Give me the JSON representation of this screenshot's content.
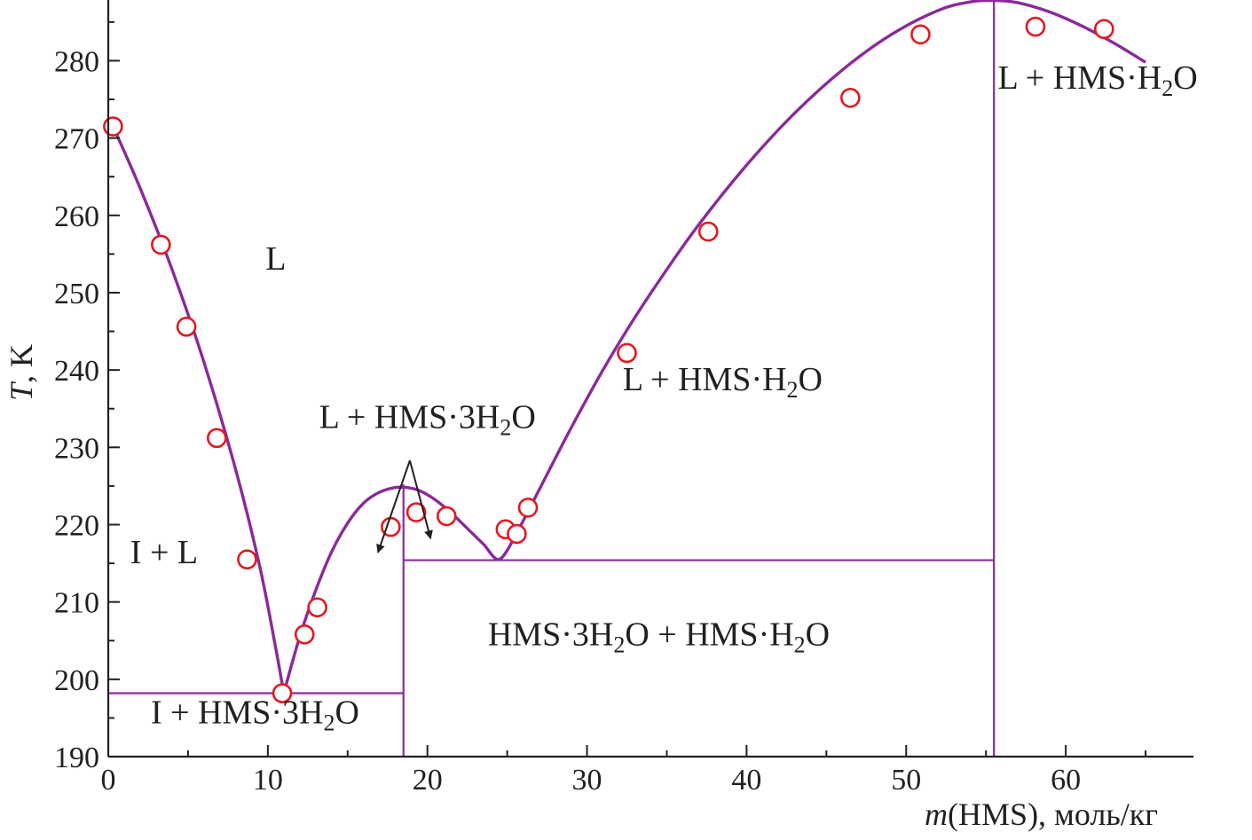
{
  "chart_data": {
    "type": "scatter",
    "xlabel": {
      "var": "m",
      "text": "(HMS), моль/кг"
    },
    "ylabel": {
      "var": "T",
      "text": ", K"
    },
    "xlim": [
      0,
      68
    ],
    "ylim": [
      190,
      289
    ],
    "xticks": [
      0,
      10,
      20,
      30,
      40,
      50,
      60
    ],
    "yticks": [
      190,
      200,
      210,
      220,
      230,
      240,
      250,
      260,
      270,
      280
    ],
    "grid": false,
    "colors": {
      "curve": "#8a2a9a",
      "points": "#e3181f",
      "axis": "#231f20",
      "arrow": "#231f20"
    },
    "series": [
      {
        "type": "scatter",
        "marker": "open-circle",
        "x": [
          0.3,
          3.3,
          4.9,
          6.8,
          8.7,
          10.9,
          12.3,
          13.1,
          17.7,
          19.3,
          21.2,
          24.9,
          25.6,
          26.3,
          32.5,
          37.6,
          46.5,
          50.9,
          58.1,
          62.4
        ],
        "y": [
          271.5,
          256.2,
          245.6,
          231.2,
          215.5,
          198.2,
          205.8,
          209.3,
          219.7,
          221.6,
          221.1,
          219.4,
          218.8,
          222.2,
          242.2,
          257.9,
          275.2,
          283.4,
          284.4,
          284.1
        ]
      },
      {
        "type": "line",
        "curve": "liquidus",
        "x": [
          0.3,
          2,
          4,
          6,
          8,
          9.5,
          10.5,
          11.0,
          12,
          13,
          14,
          15,
          16,
          17,
          18,
          18.7,
          19.5,
          20.5,
          21.5,
          22.5,
          23.5,
          24.5,
          25.5,
          27,
          29,
          31,
          33,
          35,
          37,
          40,
          43,
          46,
          49,
          52,
          54,
          55.5,
          57,
          59,
          61,
          63,
          65
        ],
        "y": [
          271.5,
          263.5,
          253.0,
          241.0,
          227.0,
          214.5,
          204.0,
          198.2,
          205.5,
          211.5,
          216.5,
          220.2,
          222.8,
          224.2,
          224.8,
          224.8,
          224.4,
          223.2,
          221.5,
          219.5,
          217.5,
          215.5,
          218.5,
          224.5,
          232.5,
          240.0,
          246.8,
          253.0,
          258.8,
          266.5,
          273.2,
          278.8,
          283.3,
          286.5,
          287.6,
          287.8,
          287.5,
          286.3,
          284.5,
          282.3,
          279.8
        ]
      }
    ],
    "phase_lines": [
      {
        "from": [
          0,
          198.2
        ],
        "to": [
          18.5,
          198.2
        ]
      },
      {
        "from": [
          18.5,
          190
        ],
        "to": [
          18.5,
          225.2
        ]
      },
      {
        "from": [
          18.5,
          215.4
        ],
        "to": [
          55.5,
          215.4
        ]
      },
      {
        "from": [
          55.5,
          190
        ],
        "to": [
          55.5,
          287.8
        ]
      }
    ],
    "annotations": [
      {
        "id": "L",
        "parts": [
          {
            "t": "L"
          }
        ],
        "at": [
          10.5,
          253
        ]
      },
      {
        "id": "IL",
        "parts": [
          {
            "t": "I + L"
          }
        ],
        "at": [
          3.5,
          215
        ]
      },
      {
        "id": "I3",
        "parts": [
          {
            "t": "I + HMS·3H"
          },
          {
            "t": "2",
            "sub": true
          },
          {
            "t": "O"
          }
        ],
        "at": [
          9.2,
          194.3
        ]
      },
      {
        "id": "L3",
        "parts": [
          {
            "t": "L + HMS·3H"
          },
          {
            "t": "2",
            "sub": true
          },
          {
            "t": "O"
          }
        ],
        "at": [
          20.0,
          232.5
        ]
      },
      {
        "id": "LH1",
        "parts": [
          {
            "t": "L + HMS·H"
          },
          {
            "t": "2",
            "sub": true
          },
          {
            "t": "O"
          }
        ],
        "at": [
          38.5,
          237.4
        ]
      },
      {
        "id": "LH2",
        "parts": [
          {
            "t": "L + HMS·H"
          },
          {
            "t": "2",
            "sub": true
          },
          {
            "t": "O"
          }
        ],
        "at": [
          62.0,
          276.4
        ]
      },
      {
        "id": "MIX",
        "parts": [
          {
            "t": "HMS·3H"
          },
          {
            "t": "2",
            "sub": true
          },
          {
            "t": "O + HMS·H"
          },
          {
            "t": "2",
            "sub": true
          },
          {
            "t": "O"
          }
        ],
        "at": [
          34.5,
          204.4
        ]
      }
    ],
    "arrows": [
      {
        "from": [
          18.9,
          228.3
        ],
        "to": [
          16.9,
          216.4
        ]
      },
      {
        "from": [
          18.9,
          228.3
        ],
        "to": [
          20.2,
          218.2
        ]
      }
    ]
  }
}
